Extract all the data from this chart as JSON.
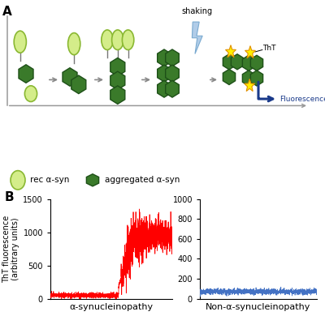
{
  "panel_A_label": "A",
  "panel_B_label": "B",
  "left_plot_xlabel": "α-synucleinopathy",
  "right_plot_xlabel": "Non-α-synucleinopathy",
  "ylabel": "ThT fluorescence\n(arbitrary units)",
  "left_yticks": [
    0,
    500,
    1000,
    1500
  ],
  "left_ylim": [
    0,
    1500
  ],
  "right_yticks": [
    0,
    200,
    400,
    600,
    800,
    1000
  ],
  "right_ylim": [
    0,
    1000
  ],
  "red_color": "#ff0000",
  "blue_color": "#4472c4",
  "legend_rec": "rec α-syn",
  "legend_agg": "aggregated α-syn",
  "shaking_label": "shaking",
  "tht_label": "ThT",
  "fluorescence_label": "Fluorescence",
  "light_green_fill": "#d4ed8a",
  "light_green_edge": "#8ab832",
  "dark_green_fill": "#3a7a2a",
  "dark_green_edge": "#1e5018",
  "arrow_color": "#888888",
  "bolt_fill": "#b0cce8",
  "bolt_edge": "#7aaad0",
  "blue_arrow_color": "#1a3a8a",
  "star_fill": "#ffee00",
  "star_edge": "#e09000"
}
